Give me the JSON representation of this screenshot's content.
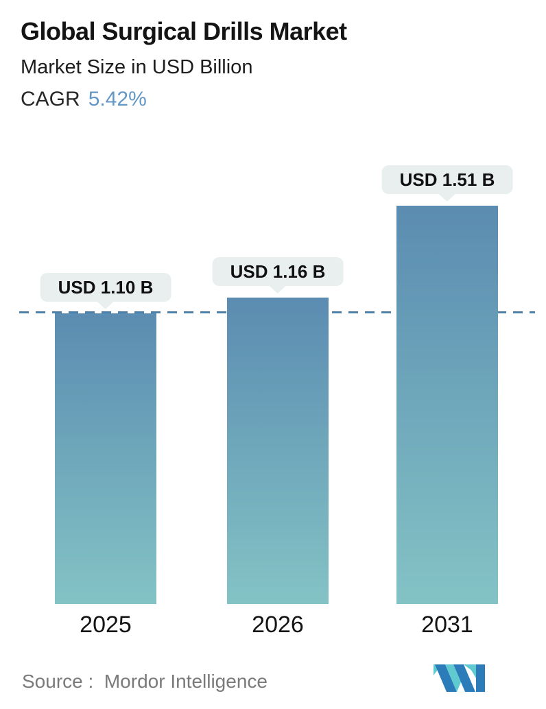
{
  "header": {
    "title": "Global Surgical Drills Market",
    "subtitle": "Market Size in USD Billion",
    "cagr_label": "CAGR",
    "cagr_value": "5.42%",
    "cagr_value_color": "#6397c5"
  },
  "chart_data": {
    "type": "bar",
    "title": "Global Surgical Drills Market",
    "subtitle": "Market Size in USD Billion",
    "unit": "USD Billion",
    "categories": [
      "2025",
      "2026",
      "2031"
    ],
    "values": [
      1.1,
      1.16,
      1.51
    ],
    "bar_labels": [
      "USD 1.10 B",
      "USD 1.16 B",
      "USD 1.51 B"
    ],
    "cagr": "5.42%",
    "xlabel": "",
    "ylabel": "Market Size in USD Billion",
    "ylim": [
      0,
      1.75
    ],
    "grid": false,
    "legend_position": "none",
    "reference_line": {
      "value": 1.1,
      "style": "dashed"
    },
    "colors": {
      "bar_gradient_top": "#5b8cb1",
      "bar_gradient_bottom": "#83c3c5",
      "dashed_line": "#4f81a8",
      "label_pill_bg": "#e9efef",
      "label_text": "#101010"
    }
  },
  "footer": {
    "source_label": "Source :",
    "source_value": "Mordor Intelligence",
    "logo_name": "mordor-intelligence-logo",
    "logo_blue": "#2c7cba",
    "logo_teal": "#5fcbd1"
  }
}
